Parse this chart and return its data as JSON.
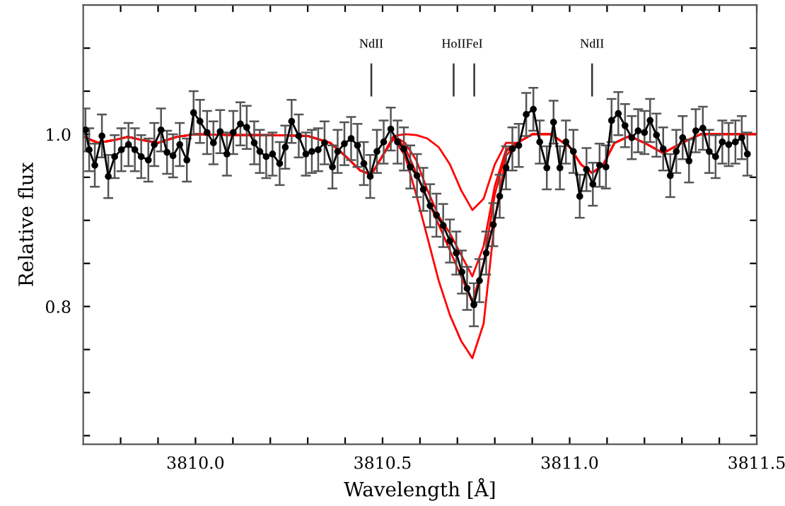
{
  "chart_data": {
    "type": "line",
    "xlabel": "Wavelength [Å]",
    "ylabel": "Relative flux",
    "xlim": [
      3809.7,
      3811.5
    ],
    "ylim": [
      0.64,
      1.15
    ],
    "xticks": [
      {
        "value": 3809.8,
        "label": null
      },
      {
        "value": 3809.9,
        "label": null
      },
      {
        "value": 3810.0,
        "label": "3810.0"
      },
      {
        "value": 3810.1,
        "label": null
      },
      {
        "value": 3810.2,
        "label": null
      },
      {
        "value": 3810.3,
        "label": null
      },
      {
        "value": 3810.4,
        "label": null
      },
      {
        "value": 3810.5,
        "label": "3810.5"
      },
      {
        "value": 3810.6,
        "label": null
      },
      {
        "value": 3810.7,
        "label": null
      },
      {
        "value": 3810.8,
        "label": null
      },
      {
        "value": 3810.9,
        "label": null
      },
      {
        "value": 3811.0,
        "label": "3811.0"
      },
      {
        "value": 3811.1,
        "label": null
      },
      {
        "value": 3811.2,
        "label": null
      },
      {
        "value": 3811.3,
        "label": null
      },
      {
        "value": 3811.4,
        "label": null
      },
      {
        "value": 3811.5,
        "label": "3811.5"
      }
    ],
    "yticks": [
      {
        "value": 0.65,
        "label": null
      },
      {
        "value": 0.7,
        "label": null
      },
      {
        "value": 0.75,
        "label": null
      },
      0.8,
      {
        "value": 0.85,
        "label": null
      },
      {
        "value": 0.9,
        "label": null
      },
      {
        "value": 0.95,
        "label": null
      },
      {
        "value": 1.0,
        "label": "1.0"
      },
      {
        "value": 1.05,
        "label": null
      },
      {
        "value": 1.1,
        "label": null
      }
    ],
    "grid": false,
    "legend": false,
    "ref_lines": [
      {
        "axis": "x",
        "value": 3810.47,
        "label": "NdII"
      },
      {
        "axis": "x",
        "value": 3810.69,
        "label": "HoII"
      },
      {
        "axis": "x",
        "value": 3810.745,
        "label": "FeI"
      },
      {
        "axis": "x",
        "value": 3811.06,
        "label": "NdII"
      }
    ],
    "series": [
      {
        "color": "#ff0000",
        "marker": "none",
        "x": [
          3809.7,
          3809.74,
          3809.78,
          3809.82,
          3809.86,
          3809.9,
          3809.95,
          3810.0,
          3810.1,
          3810.2,
          3810.3,
          3810.36,
          3810.4,
          3810.44,
          3810.47,
          3810.5,
          3810.53,
          3810.56,
          3810.59,
          3810.62,
          3810.65,
          3810.68,
          3810.71,
          3810.74,
          3810.77,
          3810.8,
          3810.83,
          3810.86,
          3810.9,
          3810.95,
          3811.0,
          3811.03,
          3811.06,
          3811.09,
          3811.12,
          3811.16,
          3811.2,
          3811.25,
          3811.3,
          3811.35,
          3811.4,
          3811.5
        ],
        "values": [
          0.997,
          0.99,
          0.993,
          0.997,
          0.993,
          0.99,
          0.997,
          1.0,
          0.999,
          0.999,
          0.998,
          0.99,
          0.975,
          0.958,
          0.953,
          0.975,
          0.998,
          1.0,
          0.999,
          0.995,
          0.985,
          0.965,
          0.935,
          0.912,
          0.925,
          0.965,
          0.99,
          0.99,
          1.0,
          1.0,
          0.985,
          0.965,
          0.955,
          0.965,
          0.99,
          0.998,
          0.99,
          0.978,
          0.99,
          1.0,
          1.0,
          1.0
        ]
      },
      {
        "color": "#ff0000",
        "marker": "none",
        "x": [
          3809.7,
          3809.74,
          3809.78,
          3809.82,
          3809.86,
          3809.9,
          3809.95,
          3810.0,
          3810.1,
          3810.2,
          3810.3,
          3810.36,
          3810.4,
          3810.44,
          3810.47,
          3810.5,
          3810.53,
          3810.56,
          3810.59,
          3810.62,
          3810.65,
          3810.68,
          3810.71,
          3810.74,
          3810.77,
          3810.8,
          3810.83,
          3810.86,
          3810.9,
          3810.95,
          3811.0,
          3811.03,
          3811.06,
          3811.09,
          3811.12,
          3811.16,
          3811.2,
          3811.25,
          3811.3,
          3811.35,
          3811.4,
          3811.5
        ],
        "values": [
          0.997,
          0.99,
          0.993,
          0.997,
          0.993,
          0.99,
          0.997,
          1.0,
          0.999,
          0.999,
          0.998,
          0.99,
          0.975,
          0.958,
          0.953,
          0.975,
          0.998,
          0.99,
          0.97,
          0.935,
          0.905,
          0.885,
          0.86,
          0.835,
          0.87,
          0.94,
          0.982,
          0.99,
          1.0,
          1.0,
          0.985,
          0.965,
          0.955,
          0.965,
          0.99,
          0.998,
          0.99,
          0.978,
          0.99,
          1.0,
          1.0,
          1.0
        ]
      },
      {
        "color": "#ff0000",
        "marker": "none",
        "x": [
          3809.7,
          3809.74,
          3809.78,
          3809.82,
          3809.86,
          3809.9,
          3809.95,
          3810.0,
          3810.1,
          3810.2,
          3810.3,
          3810.36,
          3810.4,
          3810.44,
          3810.47,
          3810.5,
          3810.53,
          3810.56,
          3810.59,
          3810.62,
          3810.65,
          3810.68,
          3810.71,
          3810.74,
          3810.77,
          3810.8,
          3810.83,
          3810.86,
          3810.9,
          3810.95,
          3811.0,
          3811.03,
          3811.06,
          3811.09,
          3811.12,
          3811.16,
          3811.2,
          3811.25,
          3811.3,
          3811.35,
          3811.4,
          3811.5
        ],
        "values": [
          0.997,
          0.99,
          0.993,
          0.997,
          0.993,
          0.99,
          0.997,
          1.0,
          0.999,
          0.999,
          0.998,
          0.99,
          0.975,
          0.958,
          0.953,
          0.975,
          0.998,
          0.985,
          0.955,
          0.925,
          0.895,
          0.865,
          0.835,
          0.805,
          0.85,
          0.93,
          0.98,
          0.99,
          1.0,
          1.0,
          0.985,
          0.965,
          0.955,
          0.965,
          0.99,
          0.998,
          0.99,
          0.978,
          0.99,
          1.0,
          1.0,
          1.0
        ]
      },
      {
        "color": "#ff0000",
        "marker": "none",
        "x": [
          3809.7,
          3809.74,
          3809.78,
          3809.82,
          3809.86,
          3809.9,
          3809.95,
          3810.0,
          3810.1,
          3810.2,
          3810.3,
          3810.36,
          3810.4,
          3810.44,
          3810.47,
          3810.5,
          3810.53,
          3810.56,
          3810.59,
          3810.62,
          3810.65,
          3810.68,
          3810.71,
          3810.74,
          3810.77,
          3810.8,
          3810.83,
          3810.86,
          3810.9,
          3810.95,
          3811.0,
          3811.03,
          3811.06,
          3811.09,
          3811.12,
          3811.16,
          3811.2,
          3811.25,
          3811.3,
          3811.35,
          3811.4,
          3811.5
        ],
        "values": [
          0.997,
          0.99,
          0.993,
          0.997,
          0.993,
          0.99,
          0.997,
          1.0,
          0.999,
          0.999,
          0.998,
          0.99,
          0.975,
          0.958,
          0.953,
          0.975,
          0.995,
          0.975,
          0.93,
          0.88,
          0.83,
          0.79,
          0.76,
          0.74,
          0.78,
          0.9,
          0.975,
          0.99,
          1.0,
          1.0,
          0.985,
          0.965,
          0.955,
          0.965,
          0.99,
          0.998,
          0.99,
          0.978,
          0.99,
          1.0,
          1.0,
          1.0
        ]
      },
      {
        "color": "#000000",
        "marker": "circle",
        "x": [
          3809.706,
          3809.716,
          3809.731,
          3809.75,
          3809.767,
          3809.784,
          3809.802,
          3809.821,
          3809.838,
          3809.855,
          3809.874,
          3809.89,
          3809.908,
          3809.924,
          3809.94,
          3809.958,
          3809.977,
          3809.995,
          3810.012,
          3810.031,
          3810.048,
          3810.066,
          3810.084,
          3810.101,
          3810.12,
          3810.137,
          3810.157,
          3810.172,
          3810.189,
          3810.206,
          3810.225,
          3810.24,
          3810.257,
          3810.276,
          3810.295,
          3810.311,
          3810.328,
          3810.345,
          3810.366,
          3810.38,
          3810.398,
          3810.416,
          3810.433,
          3810.45,
          3810.467,
          3810.485,
          3810.503,
          3810.522,
          3810.54,
          3810.557,
          3810.574,
          3810.592,
          3810.609,
          3810.627,
          3810.644,
          3810.662,
          3810.68,
          3810.697,
          3810.712,
          3810.726,
          3810.744,
          3810.759,
          3810.777,
          3810.796,
          3810.813,
          3810.83,
          3810.847,
          3810.864,
          3810.884,
          3810.903,
          3810.92,
          3810.939,
          3810.957,
          3810.974,
          3810.99,
          3811.01,
          3811.027,
          3811.045,
          3811.062,
          3811.08,
          3811.097,
          3811.112,
          3811.13,
          3811.148,
          3811.166,
          3811.183,
          3811.2,
          3811.215,
          3811.232,
          3811.25,
          3811.269,
          3811.285,
          3811.302,
          3811.319,
          3811.337,
          3811.356,
          3811.373,
          3811.39,
          3811.408,
          3811.425,
          3811.443,
          3811.46,
          3811.475
        ],
        "values": [
          1.005,
          0.982,
          0.964,
          0.998,
          0.951,
          0.974,
          0.982,
          0.988,
          0.982,
          0.974,
          0.97,
          0.988,
          1.005,
          0.979,
          0.975,
          0.988,
          0.97,
          1.025,
          1.015,
          1.002,
          0.99,
          1.003,
          0.977,
          1.002,
          1.012,
          1.008,
          0.99,
          0.98,
          0.974,
          0.977,
          0.966,
          0.985,
          1.015,
          0.998,
          0.977,
          0.98,
          0.982,
          0.99,
          0.962,
          0.98,
          0.989,
          0.995,
          0.987,
          0.966,
          0.951,
          0.98,
          0.991,
          1.006,
          0.991,
          0.983,
          0.962,
          0.952,
          0.936,
          0.917,
          0.906,
          0.894,
          0.876,
          0.862,
          0.84,
          0.821,
          0.802,
          0.83,
          0.862,
          0.895,
          0.928,
          0.961,
          0.983,
          0.987,
          1.023,
          1.029,
          0.991,
          0.961,
          1.014,
          0.961,
          0.991,
          0.98,
          0.928,
          0.959,
          0.942,
          0.964,
          0.962,
          1.016,
          1.024,
          1.01,
          0.996,
          1.004,
          1.002,
          1.016,
          0.999,
          0.983,
          0.952,
          0.98,
          0.996,
          0.969,
          1.004,
          1.007,
          0.98,
          0.974,
          0.991,
          0.988,
          0.991,
          0.996,
          0.977
        ],
        "errors": [
          0.025,
          0.025,
          0.025,
          0.025,
          0.025,
          0.025,
          0.025,
          0.025,
          0.025,
          0.025,
          0.025,
          0.025,
          0.025,
          0.025,
          0.025,
          0.025,
          0.025,
          0.025,
          0.025,
          0.025,
          0.025,
          0.025,
          0.025,
          0.025,
          0.025,
          0.025,
          0.025,
          0.025,
          0.025,
          0.025,
          0.025,
          0.025,
          0.025,
          0.025,
          0.025,
          0.025,
          0.025,
          0.025,
          0.025,
          0.025,
          0.025,
          0.025,
          0.025,
          0.025,
          0.025,
          0.025,
          0.025,
          0.025,
          0.025,
          0.025,
          0.025,
          0.025,
          0.025,
          0.025,
          0.025,
          0.025,
          0.025,
          0.025,
          0.025,
          0.025,
          0.025,
          0.025,
          0.025,
          0.025,
          0.025,
          0.025,
          0.025,
          0.025,
          0.025,
          0.025,
          0.025,
          0.025,
          0.025,
          0.025,
          0.025,
          0.025,
          0.025,
          0.025,
          0.025,
          0.025,
          0.025,
          0.025,
          0.025,
          0.025,
          0.025,
          0.025,
          0.025,
          0.025,
          0.025,
          0.025,
          0.025,
          0.025,
          0.025,
          0.025,
          0.025,
          0.025,
          0.025,
          0.025,
          0.025,
          0.025,
          0.025,
          0.025,
          0.025
        ]
      }
    ]
  }
}
